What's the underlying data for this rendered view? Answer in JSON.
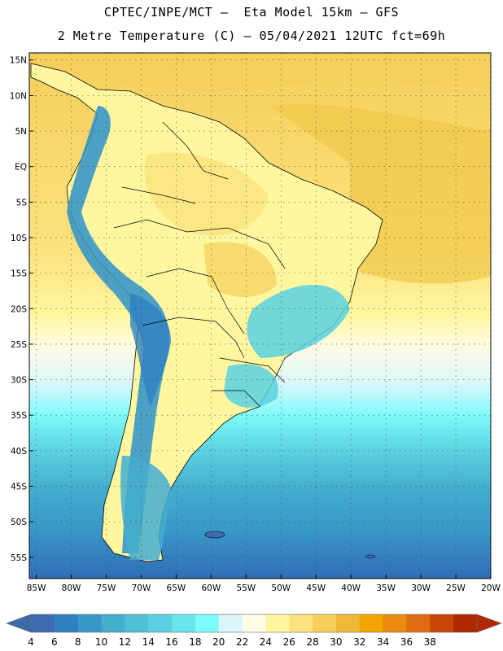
{
  "header": {
    "line1": "CPTEC/INPE/MCT –  Eta Model 15km – GFS",
    "line2": "2 Metre Temperature (C) – 05/04/2021 12UTC fct=69h"
  },
  "map": {
    "lon_range": [
      -86,
      -20
    ],
    "lat_range": [
      -58,
      16
    ],
    "lat_ticks": [
      "15N",
      "10N",
      "5N",
      "EQ",
      "5S",
      "10S",
      "15S",
      "20S",
      "25S",
      "30S",
      "35S",
      "40S",
      "45S",
      "50S",
      "55S"
    ],
    "lon_ticks": [
      "85W",
      "80W",
      "75W",
      "70W",
      "65W",
      "60W",
      "55W",
      "50W",
      "45W",
      "40W",
      "35W",
      "30W",
      "25W",
      "20W"
    ]
  },
  "colorbar": {
    "labels": [
      "4",
      "6",
      "8",
      "10",
      "12",
      "14",
      "16",
      "18",
      "20",
      "22",
      "24",
      "26",
      "28",
      "30",
      "32",
      "34",
      "36",
      "38"
    ],
    "colors": [
      "#3c6bb2",
      "#2f80c0",
      "#3897c8",
      "#44aecf",
      "#4fc0d8",
      "#5ad0e0",
      "#6ae5ea",
      "#7dfafa",
      "#d9f6fb",
      "#fffbe4",
      "#fff7a0",
      "#fbe27e",
      "#f5cf5a",
      "#f0b838",
      "#f4a400",
      "#ed8a10",
      "#e06c12",
      "#c84508",
      "#b02800"
    ],
    "low_arrow_color": "#3a6aa8",
    "high_arrow_color": "#b02800"
  }
}
